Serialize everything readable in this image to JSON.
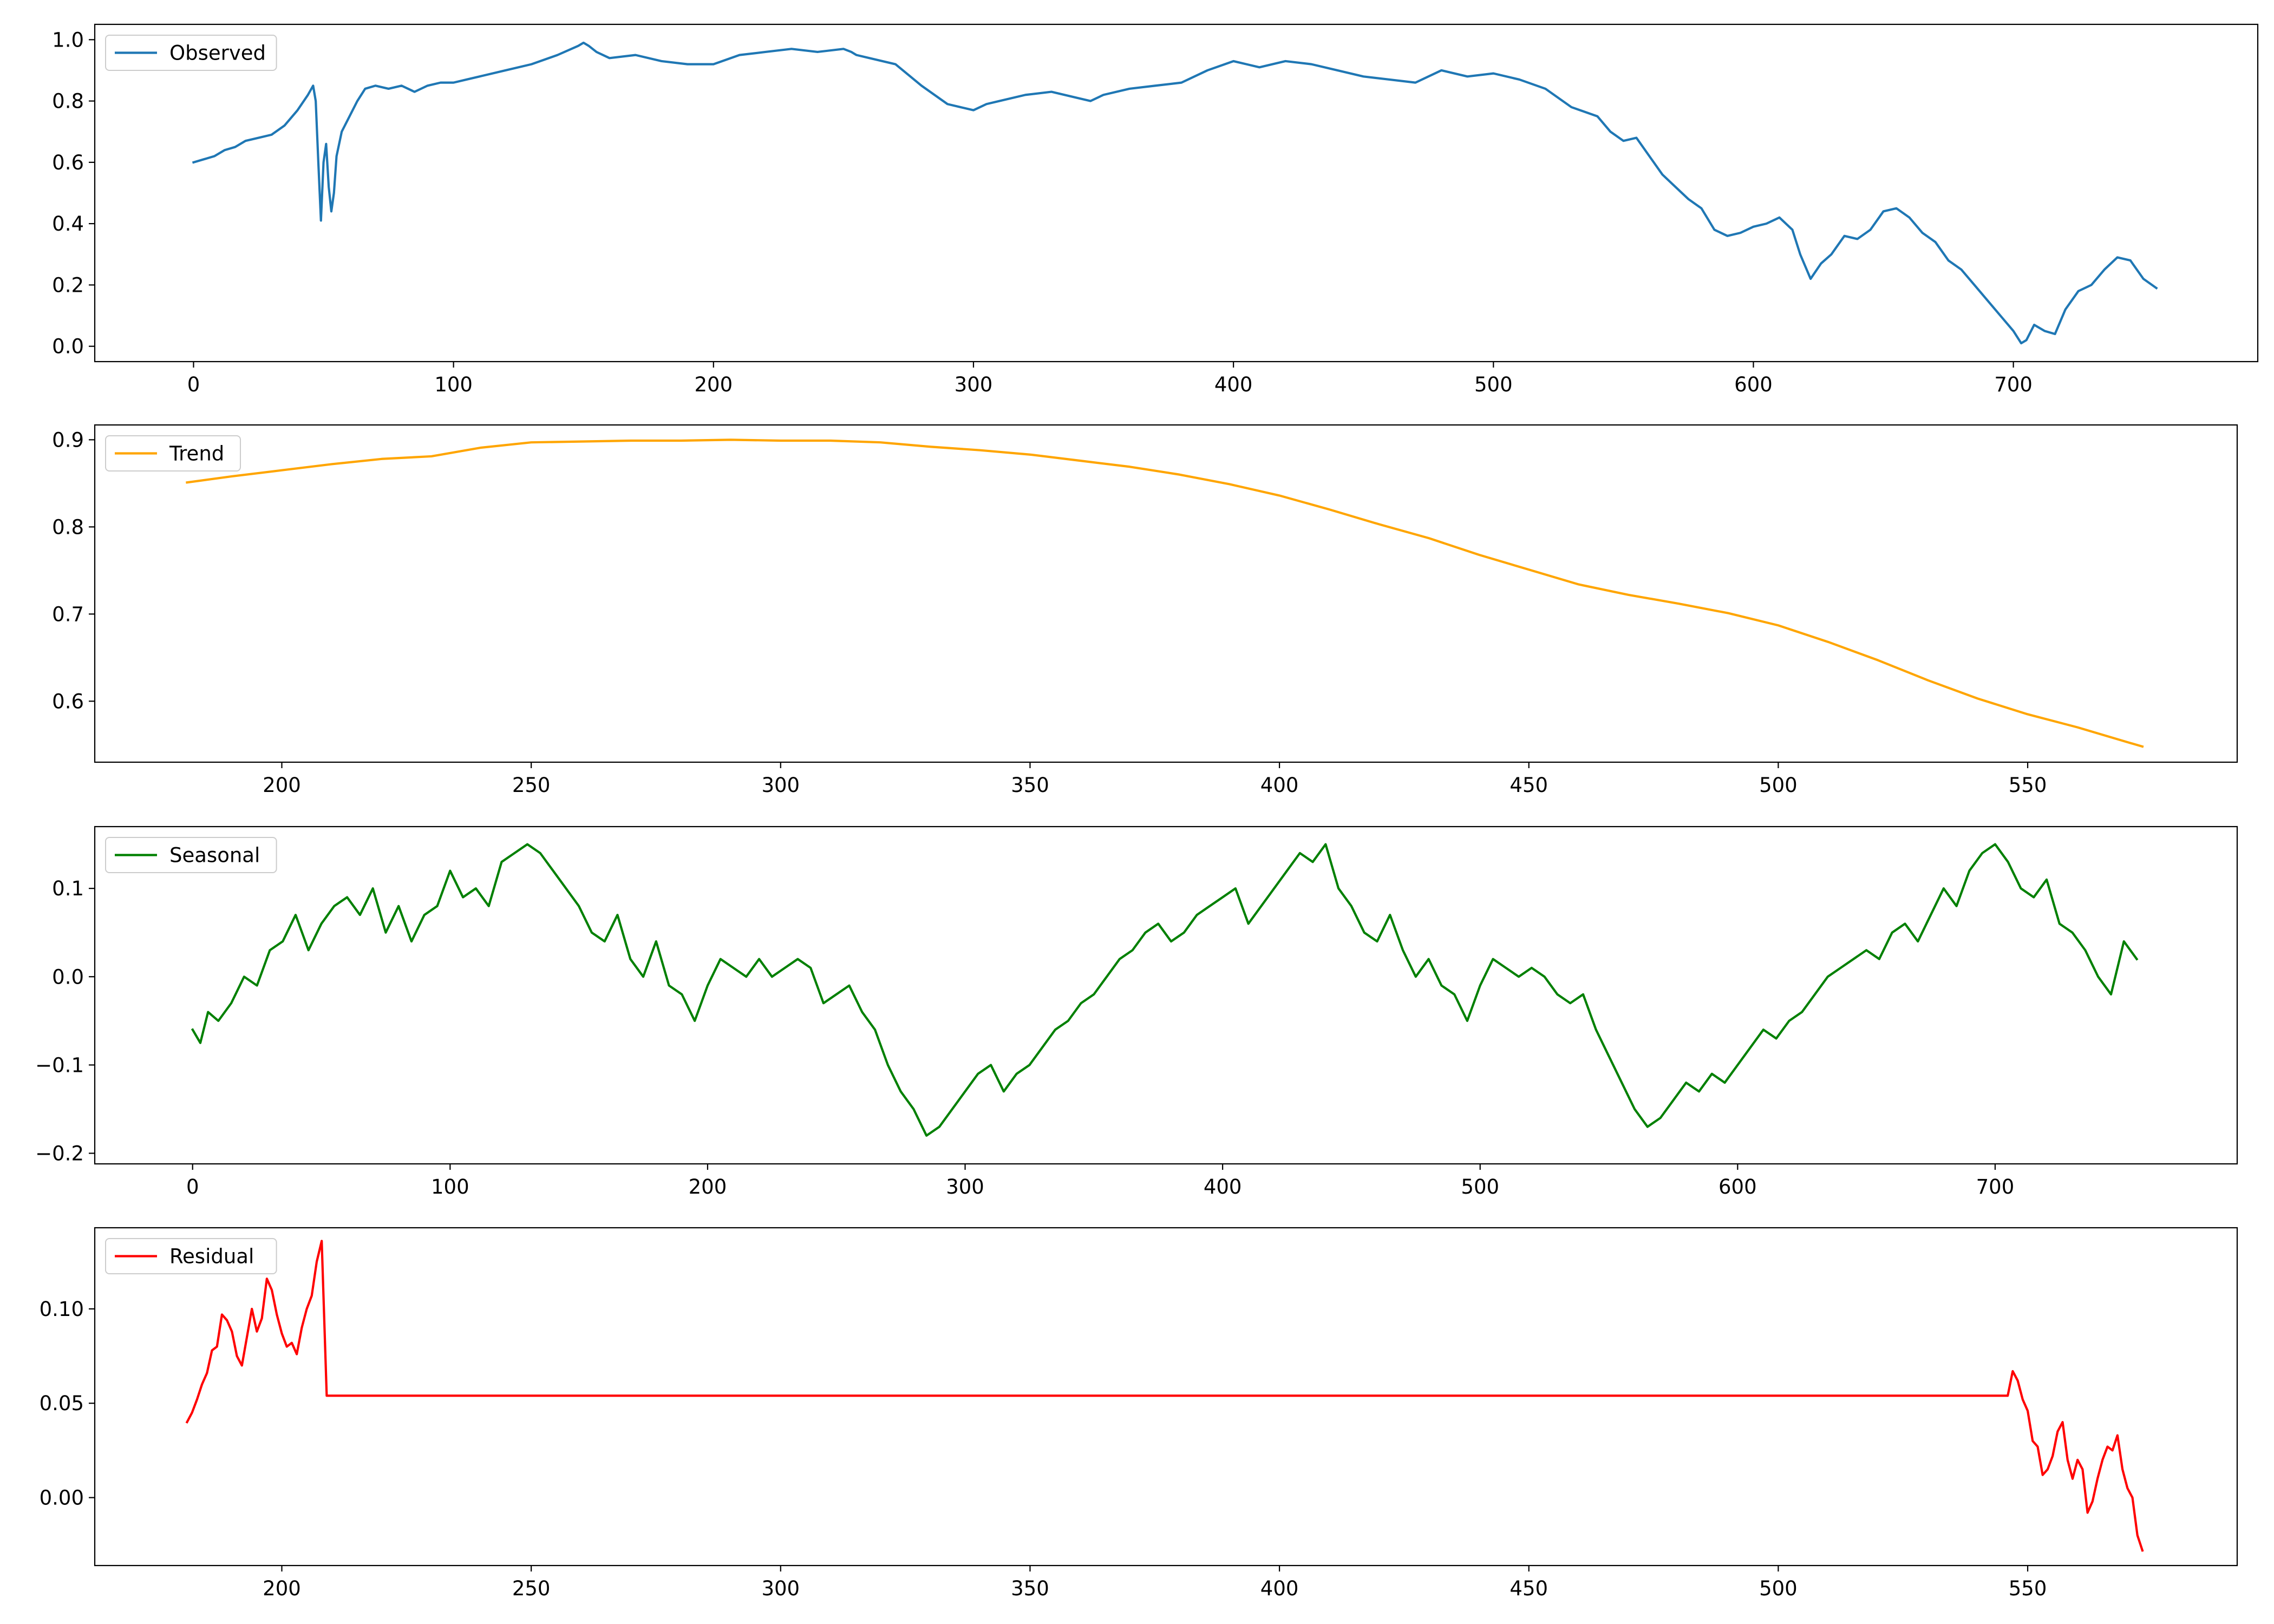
{
  "figure": {
    "background": "#ffffff"
  },
  "chart_data": [
    {
      "type": "line",
      "legend": "Observed",
      "legend_placement": "top-left",
      "color": "#1f77b4",
      "grid": false,
      "xlim": [
        -38,
        794
      ],
      "ylim": [
        -0.05,
        1.05
      ],
      "xticks": [
        0,
        100,
        200,
        300,
        400,
        500,
        600,
        700
      ],
      "yticks": [
        0.0,
        0.2,
        0.4,
        0.6,
        0.8,
        1.0
      ],
      "ytick_labels": [
        "0.0",
        "0.2",
        "0.4",
        "0.6",
        "0.8",
        "1.0"
      ],
      "x": [
        0,
        4,
        8,
        12,
        16,
        20,
        25,
        30,
        35,
        40,
        44,
        46,
        47,
        48,
        49,
        50,
        51,
        52,
        53,
        54,
        55,
        57,
        60,
        63,
        66,
        70,
        75,
        80,
        85,
        90,
        95,
        100,
        105,
        110,
        120,
        130,
        140,
        148,
        150,
        152,
        155,
        160,
        170,
        180,
        190,
        200,
        210,
        220,
        230,
        240,
        250,
        253,
        255,
        260,
        270,
        280,
        290,
        295,
        300,
        305,
        310,
        320,
        330,
        340,
        345,
        350,
        360,
        370,
        380,
        390,
        400,
        405,
        410,
        420,
        430,
        440,
        450,
        460,
        470,
        480,
        490,
        500,
        510,
        520,
        530,
        540,
        545,
        550,
        555,
        560,
        565,
        570,
        575,
        580,
        585,
        590,
        595,
        600,
        605,
        610,
        615,
        618,
        622,
        626,
        630,
        635,
        640,
        645,
        650,
        655,
        660,
        665,
        670,
        675,
        680,
        685,
        690,
        693,
        695,
        700,
        703,
        705,
        708,
        712,
        716,
        720,
        725,
        730,
        735,
        740,
        745,
        750,
        755
      ],
      "y": [
        0.6,
        0.61,
        0.62,
        0.64,
        0.65,
        0.67,
        0.68,
        0.69,
        0.72,
        0.77,
        0.82,
        0.85,
        0.8,
        0.6,
        0.41,
        0.6,
        0.66,
        0.52,
        0.44,
        0.5,
        0.62,
        0.7,
        0.75,
        0.8,
        0.84,
        0.85,
        0.84,
        0.85,
        0.83,
        0.85,
        0.86,
        0.86,
        0.87,
        0.88,
        0.9,
        0.92,
        0.95,
        0.98,
        0.99,
        0.98,
        0.96,
        0.94,
        0.95,
        0.93,
        0.92,
        0.92,
        0.95,
        0.96,
        0.97,
        0.96,
        0.97,
        0.96,
        0.95,
        0.94,
        0.92,
        0.85,
        0.79,
        0.78,
        0.77,
        0.79,
        0.8,
        0.82,
        0.83,
        0.81,
        0.8,
        0.82,
        0.84,
        0.85,
        0.86,
        0.9,
        0.93,
        0.92,
        0.91,
        0.93,
        0.92,
        0.9,
        0.88,
        0.87,
        0.86,
        0.9,
        0.88,
        0.89,
        0.87,
        0.84,
        0.78,
        0.75,
        0.7,
        0.67,
        0.68,
        0.62,
        0.56,
        0.52,
        0.48,
        0.45,
        0.38,
        0.36,
        0.37,
        0.39,
        0.4,
        0.42,
        0.38,
        0.3,
        0.22,
        0.27,
        0.3,
        0.36,
        0.35,
        0.38,
        0.44,
        0.45,
        0.42,
        0.37,
        0.34,
        0.28,
        0.25,
        0.2,
        0.15,
        0.12,
        0.1,
        0.05,
        0.01,
        0.02,
        0.07,
        0.05,
        0.04,
        0.12,
        0.18,
        0.2,
        0.25,
        0.29,
        0.28,
        0.22,
        0.19
      ]
    },
    {
      "type": "line",
      "legend": "Trend",
      "legend_placement": "top-left",
      "color": "#ffa500",
      "grid": false,
      "xlim": [
        162.5,
        592
      ],
      "ylim": [
        0.53,
        0.917
      ],
      "xticks": [
        200,
        250,
        300,
        350,
        400,
        450,
        500,
        550
      ],
      "yticks": [
        0.6,
        0.7,
        0.8,
        0.9
      ],
      "ytick_labels": [
        "0.6",
        "0.7",
        "0.8",
        "0.9"
      ],
      "x": [
        181,
        190,
        200,
        210,
        220,
        230,
        240,
        250,
        260,
        270,
        280,
        290,
        300,
        310,
        320,
        330,
        340,
        350,
        360,
        370,
        380,
        390,
        400,
        410,
        420,
        430,
        440,
        450,
        460,
        470,
        480,
        490,
        500,
        510,
        520,
        530,
        540,
        550,
        560,
        570,
        573
      ],
      "y": [
        0.851,
        0.858,
        0.865,
        0.872,
        0.878,
        0.881,
        0.891,
        0.897,
        0.898,
        0.899,
        0.899,
        0.9,
        0.899,
        0.899,
        0.897,
        0.892,
        0.888,
        0.883,
        0.876,
        0.869,
        0.86,
        0.849,
        0.836,
        0.82,
        0.803,
        0.787,
        0.768,
        0.751,
        0.734,
        0.722,
        0.712,
        0.701,
        0.687,
        0.668,
        0.647,
        0.624,
        0.603,
        0.585,
        0.57,
        0.553,
        0.548
      ]
    },
    {
      "type": "line",
      "legend": "Seasonal",
      "legend_placement": "top-left",
      "color": "#008000",
      "grid": false,
      "xlim": [
        -38,
        794
      ],
      "ylim": [
        -0.212,
        0.17
      ],
      "xticks": [
        0,
        100,
        200,
        300,
        400,
        500,
        600,
        700
      ],
      "yticks": [
        -0.2,
        -0.1,
        0.0,
        0.1
      ],
      "ytick_labels": [
        "−0.2",
        "−0.1",
        "0.0",
        "0.1"
      ],
      "x": [
        0,
        3,
        6,
        10,
        15,
        20,
        25,
        30,
        35,
        40,
        45,
        50,
        55,
        60,
        65,
        70,
        75,
        80,
        85,
        90,
        95,
        100,
        105,
        110,
        115,
        120,
        125,
        130,
        135,
        140,
        145,
        150,
        155,
        160,
        165,
        170,
        175,
        180,
        185,
        190,
        195,
        200,
        205,
        210,
        215,
        220,
        225,
        230,
        235,
        240,
        245,
        250,
        255,
        260,
        265,
        270,
        275,
        280,
        285,
        290,
        295,
        300,
        305,
        310,
        315,
        320,
        325,
        330,
        335,
        340,
        345,
        350,
        355,
        360,
        365,
        370,
        375,
        380,
        385,
        390,
        395,
        400,
        405,
        410,
        415,
        420,
        425,
        430,
        435,
        440,
        445,
        450,
        455,
        460,
        465,
        470,
        475,
        480,
        485,
        490,
        495,
        500,
        505,
        510,
        515,
        520,
        525,
        530,
        535,
        540,
        545,
        550,
        555,
        560,
        565,
        570,
        575,
        580,
        585,
        590,
        595,
        600,
        605,
        610,
        615,
        620,
        625,
        630,
        635,
        640,
        645,
        650,
        655,
        660,
        665,
        670,
        675,
        680,
        685,
        690,
        695,
        700,
        705,
        710,
        715,
        720,
        725,
        730,
        735,
        740,
        745,
        750,
        755
      ],
      "y": [
        -0.06,
        -0.075,
        -0.04,
        -0.05,
        -0.03,
        0.0,
        -0.01,
        0.03,
        0.04,
        0.07,
        0.03,
        0.06,
        0.08,
        0.09,
        0.07,
        0.1,
        0.05,
        0.08,
        0.04,
        0.07,
        0.08,
        0.12,
        0.09,
        0.1,
        0.08,
        0.13,
        0.14,
        0.15,
        0.14,
        0.12,
        0.1,
        0.08,
        0.05,
        0.04,
        0.07,
        0.02,
        0.0,
        0.04,
        -0.01,
        -0.02,
        -0.05,
        -0.01,
        0.02,
        0.01,
        0.0,
        0.02,
        0.0,
        0.01,
        0.02,
        0.01,
        -0.03,
        -0.02,
        -0.01,
        -0.04,
        -0.06,
        -0.1,
        -0.13,
        -0.15,
        -0.18,
        -0.17,
        -0.15,
        -0.13,
        -0.11,
        -0.1,
        -0.13,
        -0.11,
        -0.1,
        -0.08,
        -0.06,
        -0.05,
        -0.03,
        -0.02,
        0.0,
        0.02,
        0.03,
        0.05,
        0.06,
        0.04,
        0.05,
        0.07,
        0.08,
        0.09,
        0.1,
        0.06,
        0.08,
        0.1,
        0.12,
        0.14,
        0.13,
        0.15,
        0.1,
        0.08,
        0.05,
        0.04,
        0.07,
        0.03,
        0.0,
        0.02,
        -0.01,
        -0.02,
        -0.05,
        -0.01,
        0.02,
        0.01,
        0.0,
        0.01,
        0.0,
        -0.02,
        -0.03,
        -0.02,
        -0.06,
        -0.09,
        -0.12,
        -0.15,
        -0.17,
        -0.16,
        -0.14,
        -0.12,
        -0.13,
        -0.11,
        -0.12,
        -0.1,
        -0.08,
        -0.06,
        -0.07,
        -0.05,
        -0.04,
        -0.02,
        0.0,
        0.01,
        0.02,
        0.03,
        0.02,
        0.05,
        0.06,
        0.04,
        0.07,
        0.1,
        0.08,
        0.12,
        0.14,
        0.15,
        0.13,
        0.1,
        0.09,
        0.11,
        0.06,
        0.05,
        0.03,
        0.0,
        -0.02,
        0.04,
        0.02
      ]
    },
    {
      "type": "line",
      "legend": "Residual",
      "legend_placement": "top-left",
      "color": "#ff0000",
      "grid": false,
      "xlim": [
        162.5,
        592
      ],
      "ylim": [
        -0.036,
        0.143
      ],
      "xticks": [
        200,
        250,
        300,
        350,
        400,
        450,
        500,
        550
      ],
      "yticks": [
        0.0,
        0.05,
        0.1
      ],
      "ytick_labels": [
        "0.00",
        "0.05",
        "0.10"
      ],
      "x": [
        181,
        182,
        183,
        184,
        185,
        186,
        187,
        188,
        189,
        190,
        191,
        192,
        193,
        194,
        195,
        196,
        197,
        198,
        199,
        200,
        201,
        202,
        203,
        204,
        205,
        206,
        207,
        208,
        209,
        300,
        400,
        500,
        546,
        547,
        548,
        549,
        550,
        551,
        552,
        553,
        554,
        555,
        556,
        557,
        558,
        559,
        560,
        561,
        562,
        563,
        564,
        565,
        566,
        567,
        568,
        569,
        570,
        571,
        572,
        573
      ],
      "y": [
        0.04,
        0.045,
        0.052,
        0.06,
        0.066,
        0.078,
        0.08,
        0.097,
        0.094,
        0.088,
        0.075,
        0.07,
        0.085,
        0.1,
        0.088,
        0.095,
        0.116,
        0.11,
        0.097,
        0.087,
        0.08,
        0.082,
        0.076,
        0.09,
        0.1,
        0.107,
        0.125,
        0.136,
        0.054,
        0.054,
        0.054,
        0.054,
        0.054,
        0.067,
        0.062,
        0.052,
        0.046,
        0.03,
        0.027,
        0.012,
        0.015,
        0.022,
        0.035,
        0.04,
        0.02,
        0.01,
        0.02,
        0.015,
        -0.008,
        -0.002,
        0.01,
        0.02,
        0.027,
        0.025,
        0.033,
        0.015,
        0.005,
        0.0,
        -0.02,
        -0.028
      ]
    }
  ]
}
